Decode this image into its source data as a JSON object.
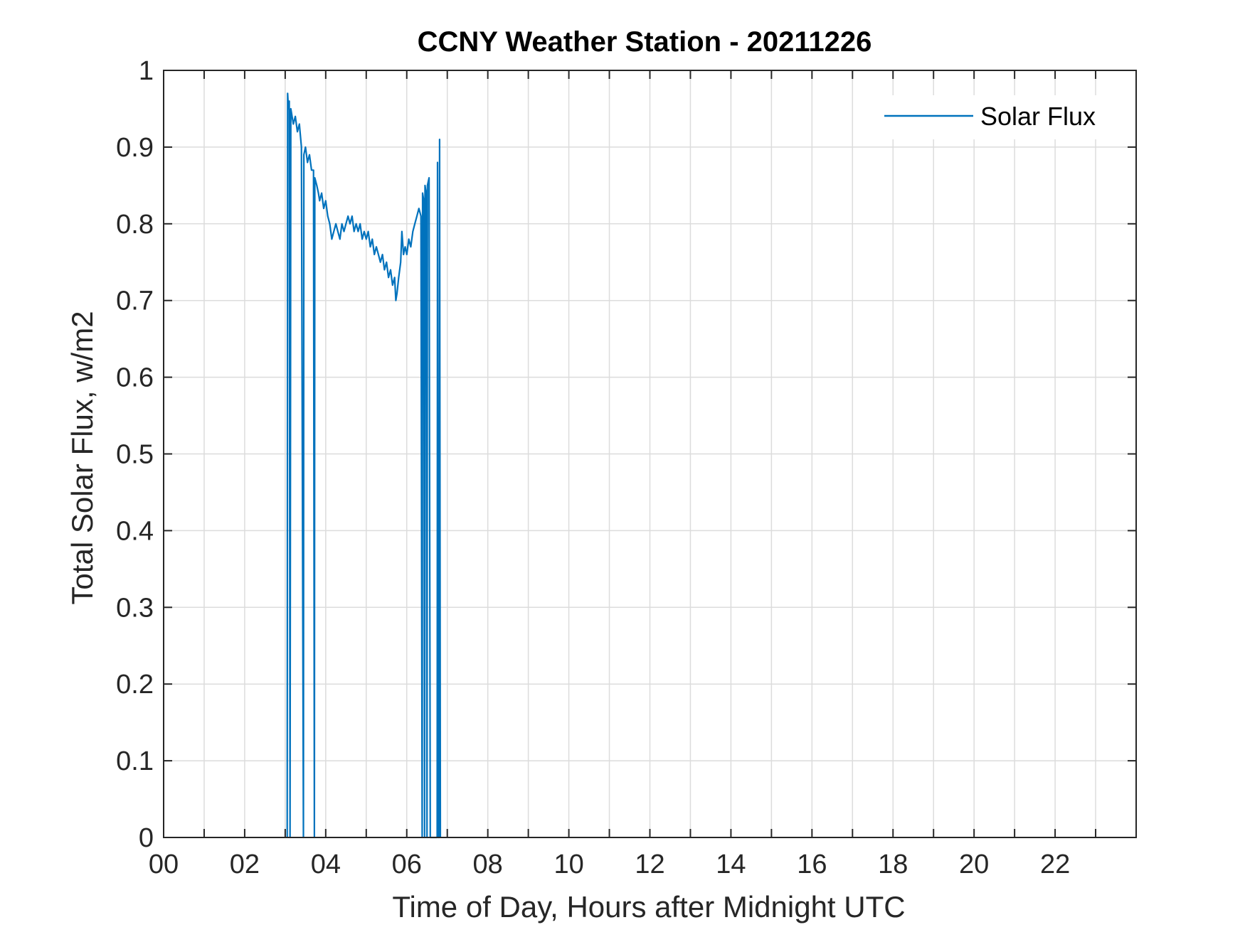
{
  "chart_data": {
    "type": "line",
    "title": "CCNY Weather Station - 20211226",
    "xlabel": "Time of Day, Hours after Midnight UTC",
    "ylabel": "Total Solar Flux, w/m2",
    "xlim": [
      0,
      24
    ],
    "ylim": [
      0,
      1
    ],
    "xticks": [
      0,
      2,
      4,
      6,
      8,
      10,
      12,
      14,
      16,
      18,
      20,
      22
    ],
    "xtick_labels": [
      "00",
      "02",
      "04",
      "06",
      "08",
      "10",
      "12",
      "14",
      "16",
      "18",
      "20",
      "22"
    ],
    "yticks": [
      0,
      0.1,
      0.2,
      0.3,
      0.4,
      0.5,
      0.6,
      0.7,
      0.8,
      0.9,
      1
    ],
    "ytick_labels": [
      "0",
      "0.1",
      "0.2",
      "0.3",
      "0.4",
      "0.5",
      "0.6",
      "0.7",
      "0.8",
      "0.9",
      "1"
    ],
    "grid": true,
    "legend_position": "top-right",
    "colors": {
      "series": "#0072BD",
      "axis": "#262626",
      "grid": "#dcdcdc"
    },
    "series": [
      {
        "name": "Solar Flux",
        "points": [
          [
            3.05,
            0
          ],
          [
            3.06,
            0.97
          ],
          [
            3.08,
            0.95
          ],
          [
            3.1,
            0.96
          ],
          [
            3.12,
            0
          ],
          [
            3.14,
            0.95
          ],
          [
            3.2,
            0.93
          ],
          [
            3.25,
            0.94
          ],
          [
            3.3,
            0.92
          ],
          [
            3.35,
            0.93
          ],
          [
            3.4,
            0.9
          ],
          [
            3.45,
            0
          ],
          [
            3.46,
            0.89
          ],
          [
            3.5,
            0.9
          ],
          [
            3.55,
            0.88
          ],
          [
            3.6,
            0.89
          ],
          [
            3.65,
            0.87
          ],
          [
            3.7,
            0.87
          ],
          [
            3.72,
            0
          ],
          [
            3.73,
            0.86
          ],
          [
            3.78,
            0.85
          ],
          [
            3.82,
            0.84
          ],
          [
            3.85,
            0.83
          ],
          [
            3.9,
            0.84
          ],
          [
            3.95,
            0.82
          ],
          [
            4.0,
            0.83
          ],
          [
            4.05,
            0.81
          ],
          [
            4.1,
            0.8
          ],
          [
            4.15,
            0.78
          ],
          [
            4.2,
            0.79
          ],
          [
            4.25,
            0.8
          ],
          [
            4.3,
            0.79
          ],
          [
            4.35,
            0.78
          ],
          [
            4.4,
            0.8
          ],
          [
            4.45,
            0.79
          ],
          [
            4.5,
            0.8
          ],
          [
            4.55,
            0.81
          ],
          [
            4.6,
            0.8
          ],
          [
            4.65,
            0.81
          ],
          [
            4.7,
            0.79
          ],
          [
            4.75,
            0.8
          ],
          [
            4.8,
            0.79
          ],
          [
            4.85,
            0.8
          ],
          [
            4.9,
            0.78
          ],
          [
            4.95,
            0.79
          ],
          [
            5.0,
            0.78
          ],
          [
            5.05,
            0.79
          ],
          [
            5.1,
            0.77
          ],
          [
            5.15,
            0.78
          ],
          [
            5.2,
            0.76
          ],
          [
            5.25,
            0.77
          ],
          [
            5.3,
            0.76
          ],
          [
            5.35,
            0.75
          ],
          [
            5.4,
            0.76
          ],
          [
            5.45,
            0.74
          ],
          [
            5.5,
            0.75
          ],
          [
            5.55,
            0.73
          ],
          [
            5.6,
            0.74
          ],
          [
            5.65,
            0.72
          ],
          [
            5.7,
            0.73
          ],
          [
            5.73,
            0.7
          ],
          [
            5.76,
            0.71
          ],
          [
            5.8,
            0.73
          ],
          [
            5.85,
            0.75
          ],
          [
            5.88,
            0.79
          ],
          [
            5.92,
            0.76
          ],
          [
            5.96,
            0.77
          ],
          [
            6.0,
            0.76
          ],
          [
            6.05,
            0.78
          ],
          [
            6.1,
            0.77
          ],
          [
            6.15,
            0.79
          ],
          [
            6.2,
            0.8
          ],
          [
            6.25,
            0.81
          ],
          [
            6.3,
            0.82
          ],
          [
            6.35,
            0.81
          ],
          [
            6.38,
            0
          ],
          [
            6.39,
            0.84
          ],
          [
            6.42,
            0.83
          ],
          [
            6.44,
            0
          ],
          [
            6.45,
            0.85
          ],
          [
            6.48,
            0.84
          ],
          [
            6.5,
            0
          ],
          [
            6.51,
            0.85
          ],
          [
            6.55,
            0.86
          ],
          [
            6.58,
            0
          ],
          [
            6.75,
            0
          ],
          [
            6.76,
            0.88
          ],
          [
            6.78,
            0
          ],
          [
            6.8,
            0
          ],
          [
            6.81,
            0.91
          ],
          [
            6.83,
            0
          ]
        ]
      }
    ]
  }
}
